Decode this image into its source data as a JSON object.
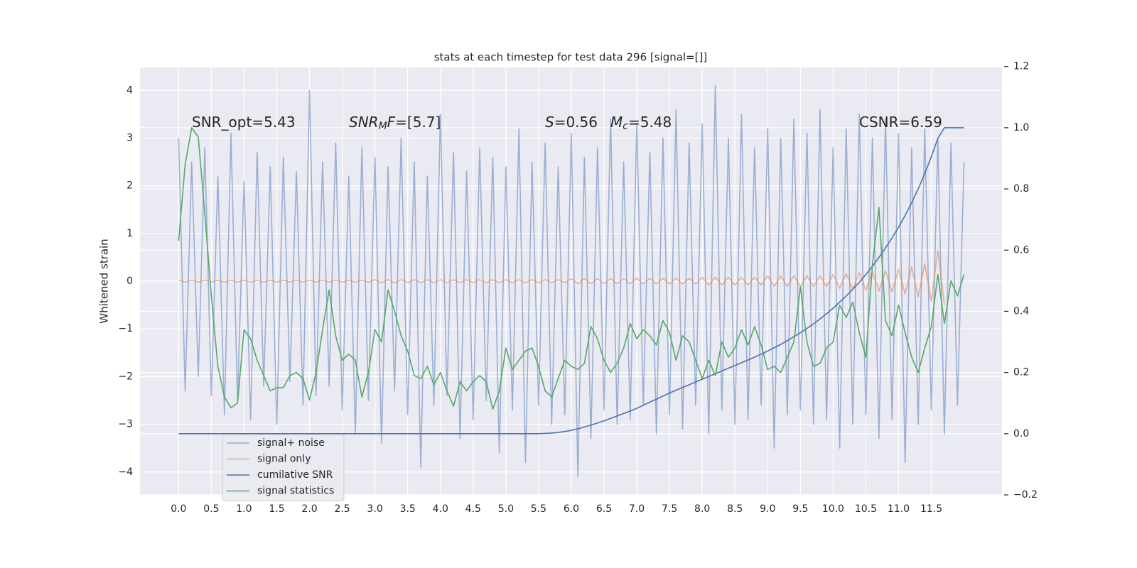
{
  "chart_data": {
    "type": "line",
    "title": "stats at each timestep for test data 296 [signal=[]]",
    "y_label": "Whitened strain",
    "annotations": [
      [
        {
          "text": "SNR_opt=5.43"
        }
      ],
      [
        {
          "text": "SNR",
          "italic": true
        },
        {
          "text": "M",
          "italic": true,
          "sub": true
        },
        {
          "text": "F",
          "italic": true
        },
        {
          "text": "=[5.7]"
        }
      ],
      [
        {
          "text": "S",
          "italic": true
        },
        {
          "text": "=0.56"
        }
      ],
      [
        {
          "text": "M",
          "italic": true
        },
        {
          "text": "c",
          "italic": true,
          "sub": true
        },
        {
          "text": "=5.48"
        }
      ],
      [
        {
          "text": "CSNR=6.59"
        }
      ]
    ],
    "x": [
      0,
      0.1,
      0.2,
      0.3,
      0.4,
      0.5,
      0.6,
      0.7,
      0.8,
      0.9,
      1,
      1.1,
      1.2,
      1.3,
      1.4,
      1.5,
      1.6,
      1.7,
      1.8,
      1.9,
      2,
      2.1,
      2.2,
      2.3,
      2.4,
      2.5,
      2.6,
      2.7,
      2.8,
      2.9,
      3,
      3.1,
      3.2,
      3.3,
      3.4,
      3.5,
      3.6,
      3.7,
      3.8,
      3.9,
      4,
      4.1,
      4.2,
      4.3,
      4.4,
      4.5,
      4.6,
      4.7,
      4.8,
      4.9,
      5,
      5.1,
      5.2,
      5.3,
      5.4,
      5.5,
      5.6,
      5.7,
      5.8,
      5.9,
      6,
      6.1,
      6.2,
      6.3,
      6.4,
      6.5,
      6.6,
      6.7,
      6.8,
      6.9,
      7,
      7.1,
      7.2,
      7.3,
      7.4,
      7.5,
      7.6,
      7.7,
      7.8,
      7.9,
      8,
      8.1,
      8.2,
      8.3,
      8.4,
      8.5,
      8.6,
      8.7,
      8.8,
      8.9,
      9,
      9.1,
      9.2,
      9.3,
      9.4,
      9.5,
      9.6,
      9.7,
      9.8,
      9.9,
      10,
      10.1,
      10.2,
      10.3,
      10.4,
      10.5,
      10.6,
      10.7,
      10.8,
      10.9,
      11,
      11.1,
      11.2,
      11.3,
      11.4,
      11.5,
      11.6,
      11.7,
      11.8,
      11.9,
      12
    ],
    "series": [
      {
        "name": "signal+ noise",
        "color": "#4c72b0",
        "opacity": 0.5,
        "axis": "y",
        "values": [
          3.0,
          -2.3,
          2.5,
          -2.0,
          2.8,
          -2.4,
          2.2,
          -2.8,
          3.1,
          -2.5,
          2.1,
          -2.9,
          2.7,
          -2.2,
          2.4,
          -3.0,
          2.6,
          -2.1,
          2.3,
          -2.6,
          4.0,
          -2.4,
          2.5,
          -2.2,
          2.9,
          -2.7,
          2.2,
          -3.2,
          2.8,
          -2.5,
          2.6,
          -3.4,
          2.4,
          -2.3,
          3.0,
          -2.8,
          2.5,
          -3.9,
          2.2,
          -2.6,
          3.5,
          -2.4,
          2.7,
          -3.3,
          2.3,
          -2.9,
          2.8,
          -2.5,
          2.6,
          -3.6,
          2.4,
          -2.7,
          3.2,
          -3.8,
          2.5,
          -2.6,
          2.9,
          -3.0,
          2.4,
          -2.8,
          3.1,
          -4.1,
          2.6,
          -3.3,
          2.8,
          -2.7,
          3.4,
          -3.0,
          2.5,
          -2.9,
          3.3,
          -2.6,
          2.7,
          -3.2,
          3.0,
          -2.8,
          3.6,
          -3.1,
          2.9,
          -2.6,
          3.3,
          -3.2,
          4.1,
          -2.7,
          3.0,
          -3.0,
          3.5,
          -2.9,
          2.8,
          -2.6,
          3.2,
          -3.5,
          3.0,
          -2.8,
          3.4,
          -2.7,
          3.1,
          -3.0,
          3.6,
          -2.9,
          2.8,
          -3.5,
          3.2,
          -3.0,
          3.5,
          -2.8,
          3.0,
          -3.3,
          3.4,
          -2.9,
          3.1,
          -3.8,
          2.8,
          -3.0,
          3.2,
          -2.7,
          3.0,
          -3.2,
          2.9,
          -2.6,
          2.5
        ]
      },
      {
        "name": "signal only",
        "color": "#dd8452",
        "opacity": 0.6,
        "axis": "y",
        "values": [
          0.02,
          -0.02,
          0.02,
          -0.02,
          0.02,
          -0.02,
          0.02,
          -0.02,
          0.02,
          -0.02,
          0.02,
          -0.02,
          0.02,
          -0.02,
          0.02,
          -0.02,
          0.02,
          -0.02,
          0.02,
          -0.02,
          0.02,
          -0.02,
          0.02,
          -0.02,
          0.02,
          -0.02,
          0.02,
          -0.02,
          0.02,
          -0.02,
          0.03,
          -0.03,
          0.03,
          -0.03,
          0.03,
          -0.03,
          0.03,
          -0.03,
          0.03,
          -0.03,
          0.03,
          -0.03,
          0.03,
          -0.03,
          0.03,
          -0.03,
          0.03,
          -0.03,
          0.03,
          -0.03,
          0.03,
          -0.03,
          0.03,
          -0.03,
          0.03,
          -0.03,
          0.03,
          -0.03,
          0.03,
          -0.03,
          0.05,
          -0.05,
          0.05,
          -0.05,
          0.05,
          -0.05,
          0.05,
          -0.05,
          0.05,
          -0.05,
          0.06,
          -0.06,
          0.06,
          -0.06,
          0.06,
          -0.06,
          0.06,
          -0.06,
          0.06,
          -0.06,
          0.08,
          -0.08,
          0.08,
          -0.08,
          0.08,
          -0.08,
          0.08,
          -0.08,
          0.08,
          -0.08,
          0.11,
          -0.11,
          0.11,
          -0.11,
          0.11,
          -0.11,
          0.11,
          -0.11,
          0.11,
          -0.11,
          0.14,
          -0.15,
          0.16,
          -0.17,
          0.18,
          -0.19,
          0.2,
          -0.21,
          0.22,
          -0.23,
          0.25,
          -0.27,
          0.3,
          -0.33,
          0.37,
          -0.42,
          0.65,
          -0.5,
          null,
          null,
          null
        ]
      },
      {
        "name": "cumilative SNR",
        "color": "#4c72b0",
        "opacity": 1,
        "axis": "y2",
        "values": [
          0,
          0,
          0,
          0,
          0,
          0,
          0,
          0,
          0,
          0,
          0,
          0,
          0,
          0,
          0,
          0,
          0,
          0,
          0,
          0,
          0,
          0,
          0,
          0,
          0,
          0,
          0,
          0,
          0,
          0,
          0,
          0,
          0,
          0,
          0,
          0,
          0,
          0,
          0,
          0,
          0,
          0,
          0,
          0,
          0,
          0,
          0,
          0,
          0,
          0,
          0,
          0,
          0,
          0,
          0,
          0,
          0.001,
          0.002,
          0.004,
          0.007,
          0.011,
          0.016,
          0.022,
          0.028,
          0.035,
          0.042,
          0.05,
          0.058,
          0.066,
          0.074,
          0.083,
          0.093,
          0.103,
          0.113,
          0.123,
          0.133,
          0.142,
          0.151,
          0.16,
          0.169,
          0.178,
          0.187,
          0.196,
          0.205,
          0.214,
          0.223,
          0.232,
          0.241,
          0.25,
          0.26,
          0.27,
          0.281,
          0.292,
          0.304,
          0.317,
          0.33,
          0.344,
          0.359,
          0.375,
          0.392,
          0.41,
          0.43,
          0.45,
          0.472,
          0.495,
          0.52,
          0.547,
          0.576,
          0.607,
          0.64,
          0.675,
          0.713,
          0.755,
          0.8,
          0.85,
          0.905,
          0.965,
          1.0,
          1.0,
          1.0,
          1.0
        ]
      },
      {
        "name": "signal statistics",
        "color": "#55a868",
        "opacity": 1,
        "axis": "y2",
        "values": [
          0.63,
          0.88,
          1.0,
          0.97,
          0.72,
          0.45,
          0.22,
          0.12,
          0.085,
          0.1,
          0.34,
          0.31,
          0.24,
          0.19,
          0.14,
          0.15,
          0.15,
          0.19,
          0.2,
          0.18,
          0.11,
          0.2,
          0.34,
          0.47,
          0.32,
          0.24,
          0.26,
          0.24,
          0.12,
          0.2,
          0.34,
          0.3,
          0.47,
          0.4,
          0.32,
          0.27,
          0.19,
          0.18,
          0.22,
          0.16,
          0.2,
          0.14,
          0.09,
          0.17,
          0.14,
          0.17,
          0.19,
          0.17,
          0.08,
          0.14,
          0.28,
          0.21,
          0.24,
          0.27,
          0.28,
          0.22,
          0.14,
          0.12,
          0.18,
          0.24,
          0.22,
          0.21,
          0.23,
          0.35,
          0.31,
          0.24,
          0.2,
          0.23,
          0.28,
          0.36,
          0.31,
          0.34,
          0.32,
          0.29,
          0.37,
          0.33,
          0.24,
          0.32,
          0.3,
          0.24,
          0.18,
          0.24,
          0.19,
          0.3,
          0.25,
          0.28,
          0.34,
          0.29,
          0.35,
          0.29,
          0.21,
          0.22,
          0.2,
          0.25,
          0.3,
          0.48,
          0.3,
          0.22,
          0.23,
          0.28,
          0.3,
          0.42,
          0.38,
          0.43,
          0.33,
          0.25,
          0.55,
          0.74,
          0.37,
          0.32,
          0.42,
          0.33,
          0.25,
          0.2,
          0.28,
          0.35,
          0.52,
          0.36,
          0.5,
          0.45,
          0.52
        ]
      }
    ],
    "xlim": [
      -0.59,
      12.58
    ],
    "xticks": [
      {
        "value": 0,
        "label": "0.0"
      },
      0.5,
      {
        "value": 1,
        "label": "1.0"
      },
      1.5,
      {
        "value": 2,
        "label": "2.0"
      },
      2.5,
      {
        "value": 3,
        "label": "3.0"
      },
      3.5,
      {
        "value": 4,
        "label": "4.0"
      },
      4.5,
      {
        "value": 5,
        "label": "5.0"
      },
      5.5,
      {
        "value": 6,
        "label": "6.0"
      },
      6.5,
      {
        "value": 7,
        "label": "7.0"
      },
      7.5,
      {
        "value": 8,
        "label": "8.0"
      },
      8.5,
      {
        "value": 9,
        "label": "9.0"
      },
      9.5,
      {
        "value": 10,
        "label": "10.0"
      },
      10.5,
      {
        "value": 11,
        "label": "11.0"
      },
      11.5
    ],
    "ylim": [
      -4.48,
      4.48
    ],
    "yticks": [
      {
        "value": -4,
        "label": "−4"
      },
      {
        "value": -3,
        "label": "−3"
      },
      {
        "value": -2,
        "label": "−2"
      },
      {
        "value": -1,
        "label": "−1"
      },
      0,
      1,
      2,
      3,
      4
    ],
    "y2lim": [
      -0.2,
      1.197
    ],
    "y2ticks": [
      {
        "value": -0.2,
        "label": "−0.2"
      },
      {
        "value": 0,
        "label": "0.0"
      },
      0.2,
      0.4,
      0.6,
      0.8,
      {
        "value": 1,
        "label": "1.0"
      },
      1.2
    ],
    "grid": true,
    "legend": "lower left"
  }
}
